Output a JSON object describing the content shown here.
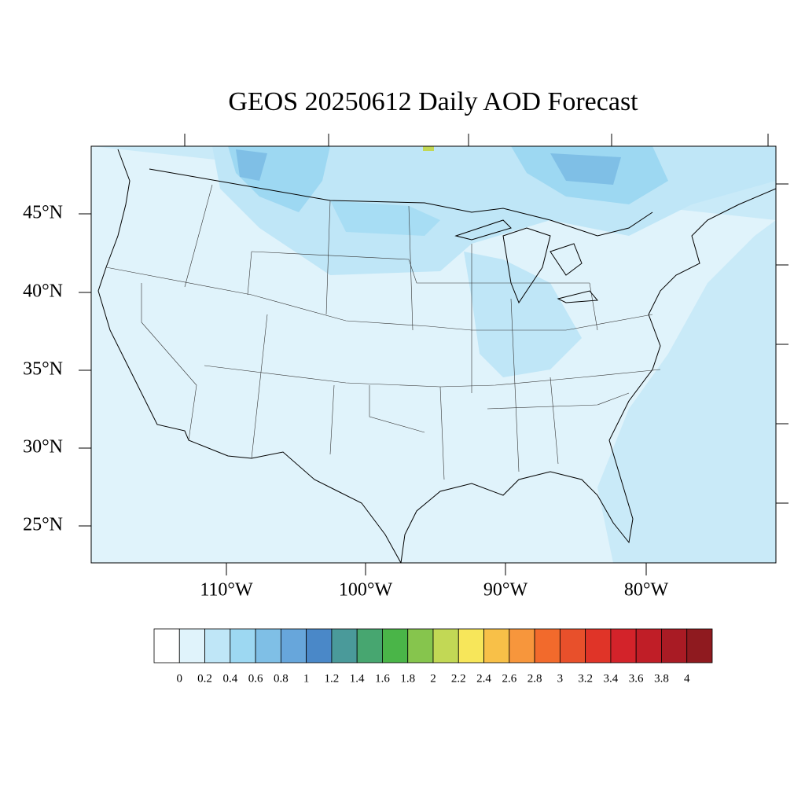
{
  "title": "GEOS 20250612 Daily AOD Forecast",
  "lat_labels": [
    "45°N",
    "40°N",
    "35°N",
    "30°N",
    "25°N"
  ],
  "lon_labels": [
    "110°W",
    "100°W",
    "90°W",
    "80°W"
  ],
  "colorbar": {
    "colors": [
      "#ffffff",
      "#e0f3fb",
      "#bfe6f7",
      "#9dd8f2",
      "#7fbfe6",
      "#67a6db",
      "#4a88c8",
      "#4a9a9a",
      "#47a670",
      "#4ab548",
      "#86c54d",
      "#c2d855",
      "#f7e65a",
      "#f8c048",
      "#f7963c",
      "#f26a2c",
      "#e8502b",
      "#e03428",
      "#d3232a",
      "#c01e27",
      "#a91b24",
      "#8f1a1f"
    ],
    "levels": [
      0,
      0.2,
      0.4,
      0.6,
      0.8,
      1,
      1.2,
      1.4,
      1.6,
      1.8,
      2,
      2.2,
      2.4,
      2.6,
      2.8,
      3,
      3.2,
      3.4,
      3.6,
      3.8,
      4
    ]
  }
}
